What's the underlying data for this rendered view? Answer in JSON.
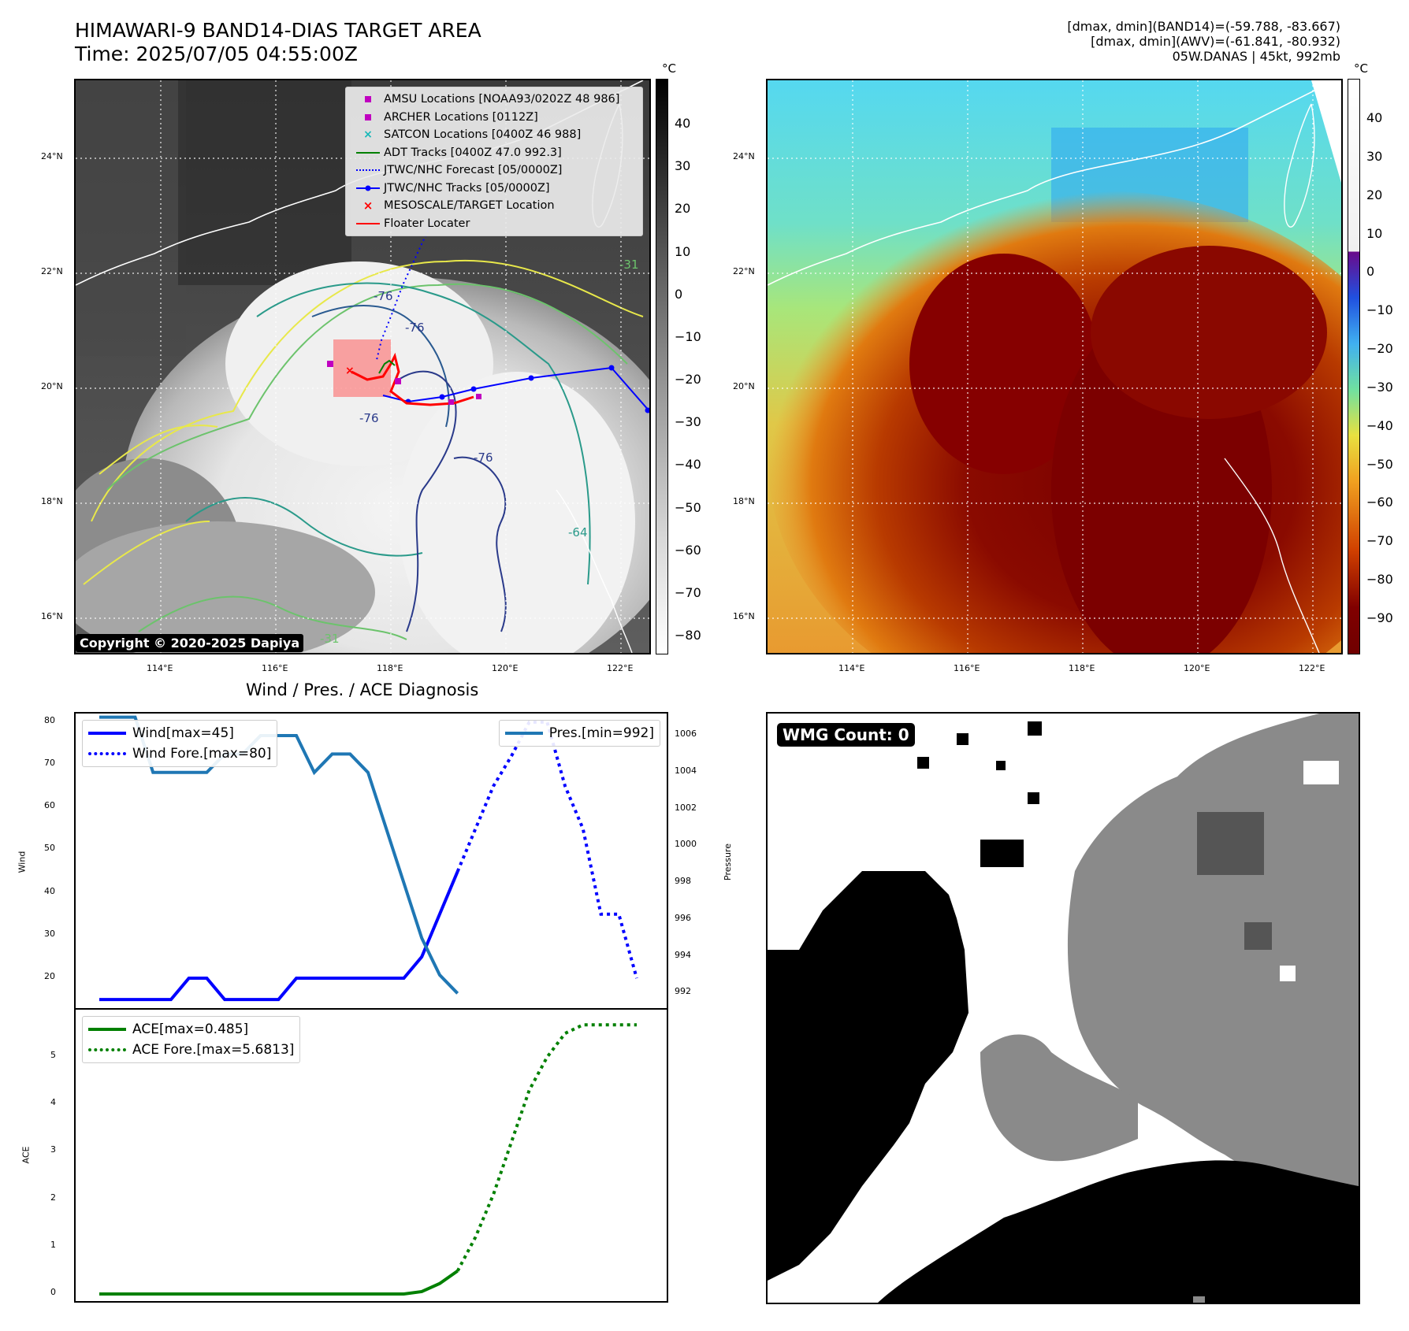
{
  "header": {
    "title_line1": "HIMAWARI-9 BAND14-DIAS TARGET AREA",
    "title_line2": "Time: 2025/07/05 04:55:00Z",
    "info_line1": "[dmax, dmin](BAND14)=(-59.788, -83.667)",
    "info_line2": "[dmax, dmin](AWV)=(-61.841, -80.932)",
    "info_line3": "05W.DANAS | 45kt, 992mb"
  },
  "map_axes": {
    "lat_ticks": [
      "24°N",
      "22°N",
      "20°N",
      "18°N",
      "16°N"
    ],
    "lon_ticks": [
      "114°E",
      "116°E",
      "118°E",
      "120°E",
      "122°E"
    ]
  },
  "ir_colorbar": {
    "unit": "°C",
    "ticks": [
      "40",
      "30",
      "20",
      "10",
      "0",
      "−10",
      "−20",
      "−30",
      "−40",
      "−50",
      "−60",
      "−70",
      "−80"
    ]
  },
  "awv_colorbar": {
    "unit": "°C",
    "ticks": [
      "40",
      "30",
      "20",
      "10",
      "0",
      "−10",
      "−20",
      "−30",
      "−40",
      "−50",
      "−60",
      "−70",
      "−80",
      "−90"
    ]
  },
  "map_legend": {
    "items": [
      {
        "label": "AMSU Locations [NOAA93/0202Z 48 986]",
        "color": "#c000c0",
        "icon": "square-marker"
      },
      {
        "label": "ARCHER Locations [0112Z]",
        "color": "#c000c0",
        "icon": "square-marker"
      },
      {
        "label": "SATCON Locations [0400Z 46 988]",
        "color": "#17b8b8",
        "icon": "x-marker"
      },
      {
        "label": "ADT Tracks [0400Z 47.0 992.3]",
        "color": "#008000",
        "icon": "solid-line"
      },
      {
        "label": "JTWC/NHC Forecast [05/0000Z]",
        "color": "#0000ff",
        "icon": "dotted-line"
      },
      {
        "label": "JTWC/NHC Tracks [05/0000Z]",
        "color": "#0000ff",
        "icon": "line-dot"
      },
      {
        "label": "MESOSCALE/TARGET Location",
        "color": "#ff0000",
        "icon": "x-marker"
      },
      {
        "label": "Floater Locater",
        "color": "#ff0000",
        "icon": "solid-line"
      }
    ]
  },
  "contour_labels": [
    "-76",
    "-76",
    "-76",
    "-76",
    "-64",
    "-31",
    "-31"
  ],
  "copyright": "Copyright © 2020-2025 Dapiya",
  "diagnosis": {
    "title": "Wind / Pres. / ACE Diagnosis",
    "wind_ylabel": "Wind",
    "pressure_ylabel": "Pressure",
    "ace_ylabel": "ACE",
    "legend_wind": "Wind[max=45]",
    "legend_wind_fore": "Wind Fore.[max=80]",
    "legend_pres": "Pres.[min=992]",
    "legend_ace": "ACE[max=0.485]",
    "legend_ace_fore": "ACE Fore.[max=5.6813]"
  },
  "wmg": {
    "label": "WMG Count: 0"
  },
  "chart_data": [
    {
      "type": "line",
      "title": "Wind / Pres. / ACE Diagnosis",
      "ylabel": "Wind",
      "ylim": [
        13,
        82
      ],
      "y2label": "Pressure",
      "y2lim": [
        991.2,
        1007.2
      ],
      "xlim": [
        0,
        30
      ],
      "wind_ticks": [
        20,
        30,
        40,
        50,
        60,
        70,
        80
      ],
      "pressure_ticks": [
        992,
        994,
        996,
        998,
        1000,
        1002,
        1004,
        1006
      ],
      "series": [
        {
          "name": "Wind[max=45]",
          "color": "#0000ff",
          "style": "solid",
          "axis": "left",
          "x": [
            0,
            1,
            2,
            3,
            4,
            5,
            6,
            7,
            8,
            9,
            10,
            11,
            12,
            13,
            14,
            15,
            16,
            17,
            18,
            19,
            20
          ],
          "y": [
            15,
            15,
            15,
            15,
            15,
            20,
            20,
            15,
            15,
            15,
            15,
            20,
            20,
            20,
            20,
            20,
            20,
            20,
            25,
            35,
            45
          ]
        },
        {
          "name": "Wind Fore.[max=80]",
          "color": "#0000ff",
          "style": "dotted",
          "axis": "left",
          "x": [
            20,
            21,
            22,
            23,
            24,
            25,
            26,
            27,
            28,
            29,
            30
          ],
          "y": [
            45,
            55,
            65,
            72,
            80,
            80,
            65,
            55,
            35,
            35,
            20
          ]
        },
        {
          "name": "Pres.[min=992]",
          "color": "#1f77b4",
          "style": "solid",
          "axis": "right",
          "x": [
            0,
            1,
            2,
            3,
            4,
            5,
            6,
            7,
            8,
            9,
            10,
            11,
            12,
            13,
            14,
            15,
            16,
            17,
            18,
            19,
            20
          ],
          "y": [
            1007,
            1007,
            1007,
            1004,
            1004,
            1004,
            1004,
            1005,
            1005,
            1006,
            1006,
            1006,
            1004,
            1005,
            1005,
            1004,
            1001,
            998,
            995,
            993,
            992
          ]
        }
      ]
    },
    {
      "type": "line",
      "ylabel": "ACE",
      "ylim": [
        -0.15,
        6.0
      ],
      "xlim": [
        0,
        30
      ],
      "ace_ticks": [
        0,
        1,
        2,
        3,
        4,
        5
      ],
      "series": [
        {
          "name": "ACE[max=0.485]",
          "color": "#008000",
          "style": "solid",
          "x": [
            0,
            4,
            8,
            12,
            16,
            17,
            18,
            19,
            20
          ],
          "y": [
            0,
            0,
            0,
            0,
            0,
            0,
            0.05,
            0.22,
            0.485
          ]
        },
        {
          "name": "ACE Fore.[max=5.6813]",
          "color": "#008000",
          "style": "dotted",
          "x": [
            20,
            21,
            22,
            23,
            24,
            25,
            26,
            27,
            28,
            29,
            30
          ],
          "y": [
            0.485,
            1.2,
            2.1,
            3.2,
            4.3,
            5.0,
            5.5,
            5.68,
            5.68,
            5.68,
            5.68
          ]
        }
      ]
    }
  ]
}
